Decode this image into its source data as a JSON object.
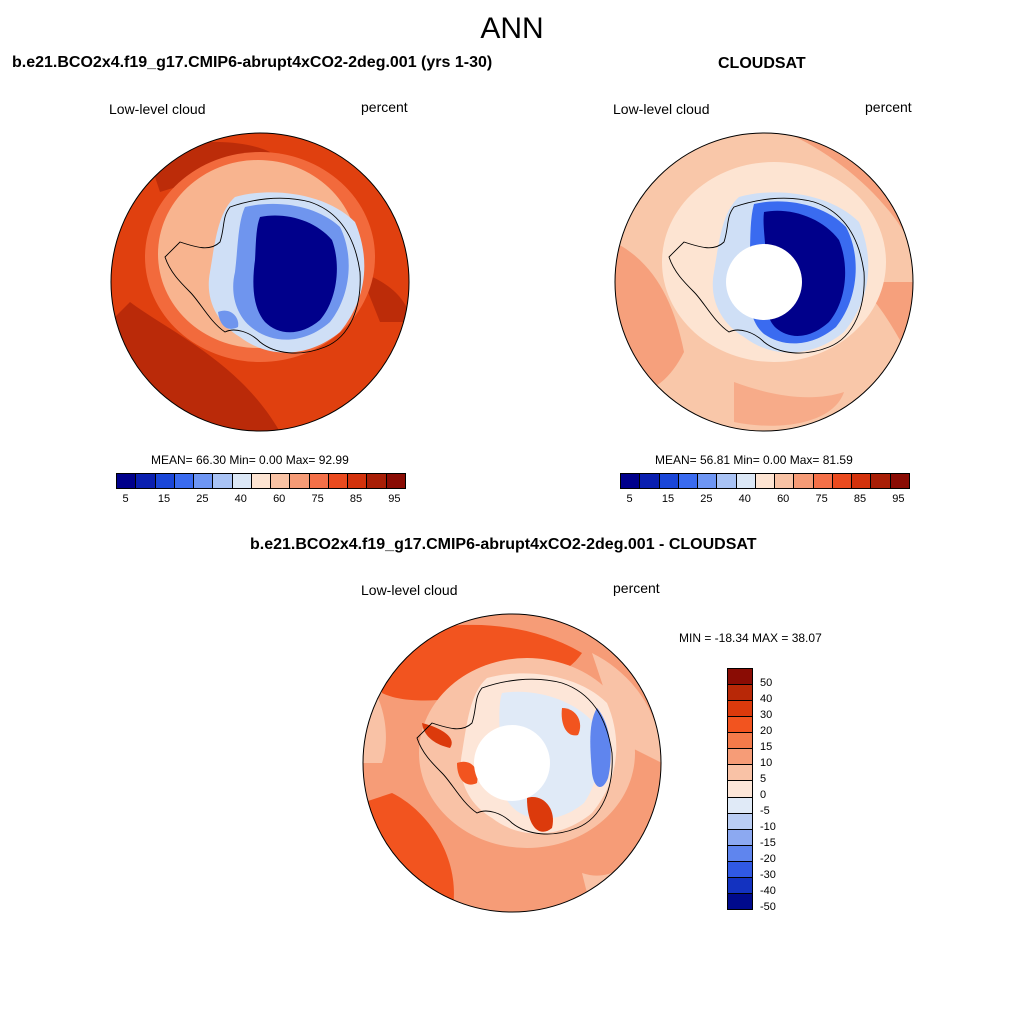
{
  "season": "ANN",
  "panels": [
    {
      "title": "b.e21.BCO2x4.f19_g17.CMIP6-abrupt4xCO2-2deg.001 (yrs 1-30)",
      "variable": "Low-level cloud",
      "units": "percent",
      "stats": "MEAN=  66.30  Min=   0.00  Max=  92.99",
      "colorbar_labels": [
        "5",
        "15",
        "25",
        "40",
        "60",
        "75",
        "85",
        "95"
      ]
    },
    {
      "title": "CLOUDSAT",
      "variable": "Low-level cloud",
      "units": "percent",
      "stats": "MEAN=  56.81  Min=   0.00  Max=  81.59",
      "colorbar_labels": [
        "5",
        "15",
        "25",
        "40",
        "60",
        "75",
        "85",
        "95"
      ]
    },
    {
      "title": "b.e21.BCO2x4.f19_g17.CMIP6-abrupt4xCO2-2deg.001 - CLOUDSAT",
      "variable": "Low-level cloud",
      "units": "percent",
      "stats": "MIN = -18.34 MAX =  38.07",
      "colorbar_labels": [
        "50",
        "40",
        "30",
        "20",
        "15",
        "10",
        "5",
        "0",
        "-5",
        "-10",
        "-15",
        "-20",
        "-30",
        "-40",
        "-50"
      ]
    }
  ],
  "colors": {
    "abs_scale": [
      "#00008b",
      "#0a1fb0",
      "#1a46d8",
      "#3a6bf0",
      "#6e96f4",
      "#a9c3f5",
      "#dbe7f6",
      "#fde4d2",
      "#f8c2a4",
      "#f59b76",
      "#f47048",
      "#ea4a1e",
      "#d3320c",
      "#a81e06",
      "#8a0c04"
    ],
    "diff_scale": [
      "#8a0c04",
      "#b82807",
      "#dc3a0c",
      "#f2541f",
      "#f47a4a",
      "#f69c77",
      "#f9c2a6",
      "#fde6d8",
      "#e0eaf7",
      "#b9cdf4",
      "#8ca9f1",
      "#5f85ee",
      "#3059e4",
      "#1332c0",
      "#000a8c"
    ]
  }
}
